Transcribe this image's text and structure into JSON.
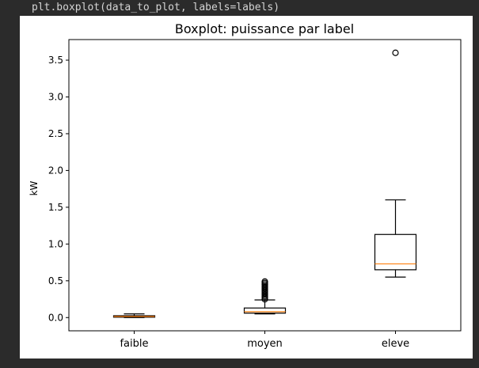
{
  "code": {
    "line": "plt.boxplot(data_to_plot, labels=labels)"
  },
  "chart_data": {
    "type": "boxplot",
    "title": "Boxplot: puissance par label",
    "xlabel": "",
    "ylabel": "kW",
    "categories": [
      "faible",
      "moyen",
      "eleve"
    ],
    "ylim": [
      -0.18,
      3.78
    ],
    "yticks": [
      "0.0",
      "0.5",
      "1.0",
      "1.5",
      "2.0",
      "2.5",
      "3.0",
      "3.5"
    ],
    "grid": false,
    "boxes": [
      {
        "label": "faible",
        "whisker_low": 0.0,
        "q1": 0.005,
        "median": 0.015,
        "q3": 0.025,
        "whisker_high": 0.05,
        "outliers": []
      },
      {
        "label": "moyen",
        "whisker_low": 0.05,
        "q1": 0.06,
        "median": 0.08,
        "q3": 0.13,
        "whisker_high": 0.24,
        "outliers": [
          0.25,
          0.27,
          0.29,
          0.31,
          0.33,
          0.35,
          0.37,
          0.39,
          0.41,
          0.43,
          0.45,
          0.47,
          0.49
        ]
      },
      {
        "label": "eleve",
        "whisker_low": 0.55,
        "q1": 0.65,
        "median": 0.73,
        "q3": 1.13,
        "whisker_high": 1.6,
        "outliers": [
          3.6
        ]
      }
    ],
    "colors": {
      "box": "#000000",
      "median": "#ff7f0e",
      "flier": "#000000"
    }
  }
}
